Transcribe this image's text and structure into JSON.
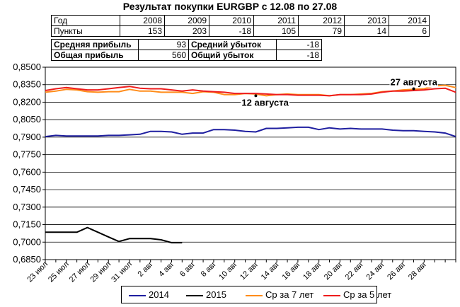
{
  "title": "Результат покупки EURGBP с 12.08 по 27.08",
  "table": {
    "year_label": "Год",
    "years": [
      "2008",
      "2009",
      "2010",
      "2011",
      "2012",
      "2013",
      "2014"
    ],
    "points_label": "Пункты",
    "points": [
      "153",
      "203",
      "-18",
      "105",
      "79",
      "14",
      "6"
    ],
    "avg_profit_label": "Средняя прибыль",
    "avg_profit_value": "93",
    "avg_loss_label": "Средний убыток",
    "avg_loss_value": "-18",
    "total_profit_label": "Общая прибыль",
    "total_profit_value": "560",
    "total_loss_label": "Общий убыток",
    "total_loss_value": "-18"
  },
  "chart_data": {
    "type": "line",
    "title": "Результат покупки EURGBP с 12.08 по 27.08",
    "ylim": [
      0.685,
      0.85
    ],
    "yticks": [
      "0,8500",
      "0,8350",
      "0,8200",
      "0,8050",
      "0,7900",
      "0,7750",
      "0,7600",
      "0,7450",
      "0,7300",
      "0,7150",
      "0,7000",
      "0,6850"
    ],
    "xticks": [
      "23 июл",
      "25 июл",
      "27 июл",
      "29 июл",
      "31 июл",
      "2 авг",
      "4 авг",
      "6 авг",
      "8 авг",
      "10 авг",
      "12 авг",
      "14 авг",
      "16 авг",
      "18 авг",
      "20 авг",
      "22 авг",
      "24 авг",
      "26 авг",
      "28 авг"
    ],
    "x_start": "23 июл",
    "x_count": 40,
    "grid": "horizontal",
    "legend_position": "bottom",
    "series": [
      {
        "name": "2014",
        "color": "#1f1fa0",
        "values": [
          0.7905,
          0.7915,
          0.791,
          0.791,
          0.791,
          0.791,
          0.7915,
          0.7915,
          0.792,
          0.7925,
          0.795,
          0.795,
          0.7945,
          0.7925,
          0.7935,
          0.7935,
          0.7965,
          0.7965,
          0.796,
          0.795,
          0.7945,
          0.7975,
          0.7975,
          0.798,
          0.7985,
          0.7985,
          0.7965,
          0.798,
          0.797,
          0.7975,
          0.797,
          0.797,
          0.797,
          0.796,
          0.7955,
          0.7955,
          0.795,
          0.7945,
          0.7935,
          0.7905
        ]
      },
      {
        "name": "2015",
        "color": "#000000",
        "values": [
          0.7085,
          0.7085,
          0.7085,
          0.7085,
          0.7125,
          0.7085,
          0.7045,
          0.7005,
          0.703,
          0.703,
          0.703,
          0.702,
          0.6995,
          0.6995
        ]
      },
      {
        "name": "Ср за 7 лет",
        "color": "#ff8c1a",
        "values": [
          0.8285,
          0.8295,
          0.831,
          0.8305,
          0.829,
          0.8285,
          0.829,
          0.829,
          0.831,
          0.8295,
          0.8295,
          0.8285,
          0.8285,
          0.8285,
          0.8275,
          0.829,
          0.8285,
          0.8265,
          0.8265,
          0.8275,
          0.827,
          0.8255,
          0.8265,
          0.827,
          0.8265,
          0.8265,
          0.8265,
          0.8255,
          0.8265,
          0.8265,
          0.827,
          0.8275,
          0.829,
          0.8295,
          0.8305,
          0.831,
          0.8315,
          0.834,
          0.8345,
          0.8325
        ]
      },
      {
        "name": "Ср за 5 лет",
        "color": "#ee1c1c",
        "values": [
          0.83,
          0.8315,
          0.8325,
          0.8315,
          0.8305,
          0.8305,
          0.8315,
          0.8325,
          0.8335,
          0.832,
          0.8315,
          0.8315,
          0.8305,
          0.8295,
          0.8305,
          0.8295,
          0.829,
          0.8285,
          0.8275,
          0.8275,
          0.8275,
          0.827,
          0.8265,
          0.8265,
          0.826,
          0.826,
          0.826,
          0.8255,
          0.8265,
          0.8265,
          0.8265,
          0.827,
          0.8285,
          0.8295,
          0.8295,
          0.83,
          0.8305,
          0.8315,
          0.832,
          0.8285
        ]
      }
    ],
    "annotations": [
      {
        "text": "12 августа",
        "x_index": 20,
        "y": 0.8255
      },
      {
        "text": "27 августа",
        "x_index": 35,
        "y": 0.8315
      }
    ]
  }
}
